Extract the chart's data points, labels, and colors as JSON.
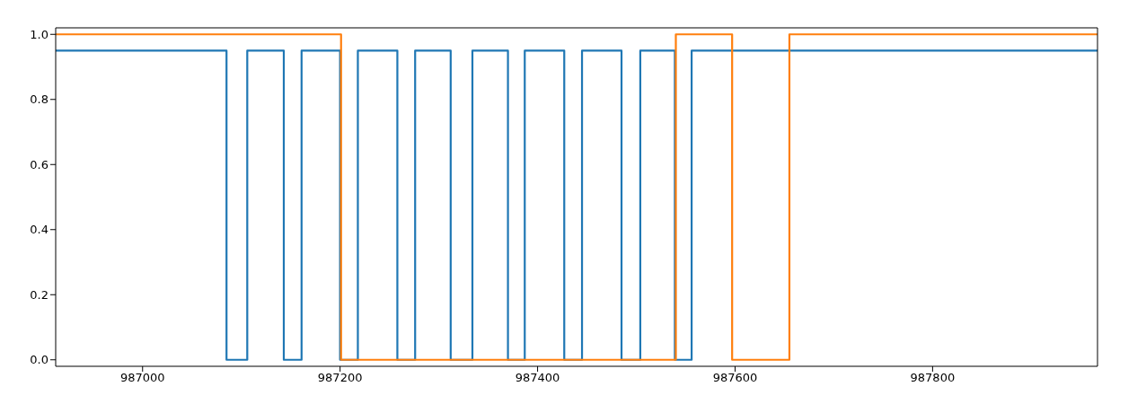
{
  "chart_data": {
    "type": "step",
    "xlim": [
      986912,
      987967
    ],
    "xticks": [
      987000,
      987200,
      987400,
      987600,
      987800
    ],
    "ylim": [
      -0.02,
      1.02
    ],
    "yticks": [
      {
        "value": 0,
        "label": "0.0"
      },
      {
        "value": 0.2,
        "label": "0.2"
      },
      {
        "value": 0.4,
        "label": "0.4"
      },
      {
        "value": 0.6,
        "label": "0.6"
      },
      {
        "value": 0.8,
        "label": "0.8"
      },
      {
        "value": 1,
        "label": "1.0"
      }
    ],
    "marker": "none",
    "line_style": "solid",
    "series": [
      {
        "color": "#1f77b4",
        "x": [
          986912,
          987085,
          987106,
          987143,
          987161,
          987200,
          987218,
          987258,
          987276,
          987312,
          987334,
          987370,
          987387,
          987427,
          987445,
          987485,
          987504,
          987539,
          987556,
          987967
        ],
        "values": [
          0.95,
          0,
          0.95,
          0,
          0.95,
          0,
          0.95,
          0,
          0.95,
          0,
          0.95,
          0,
          0.95,
          0,
          0.95,
          0,
          0.95,
          0,
          0.95,
          0.95
        ]
      },
      {
        "color": "#ff7f0e",
        "x": [
          986912,
          987201,
          987540,
          987597,
          987655,
          987967
        ],
        "values": [
          1,
          0,
          1,
          0,
          1,
          1
        ]
      }
    ]
  }
}
